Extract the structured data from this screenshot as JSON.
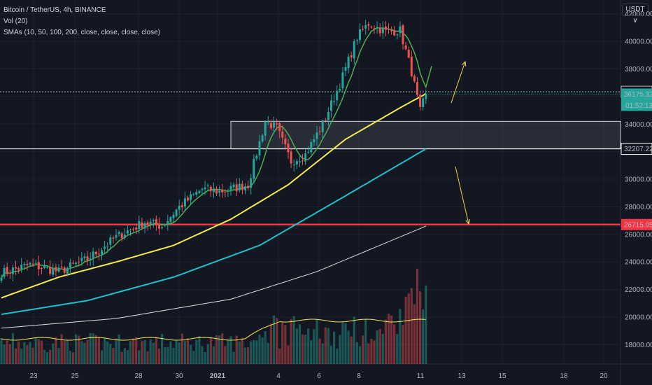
{
  "header": {
    "symbol": "Bitcoin / TetherUS, 4h, BINANCE",
    "volume": "Vol (20)",
    "smas": "SMAs (10, 50, 100, 200, close, close, close, close)",
    "currency": "USDT ∨"
  },
  "chart_data": {
    "type": "candlestick",
    "y_ticks": [
      "42000.00",
      "40000.00",
      "38000.00",
      "36000.00",
      "34000.00",
      "32000.00",
      "30000.00",
      "28000.00",
      "26000.00",
      "24000.00",
      "22000.00",
      "20000.00",
      "18000.00"
    ],
    "x_ticks": [
      "23",
      "25",
      "28",
      "30",
      "2021",
      "4",
      "6",
      "8",
      "11",
      "13",
      "15",
      "18",
      "20"
    ],
    "ylim": [
      16600,
      43000
    ],
    "levels": [
      {
        "value": "36344.46",
        "color": "#b2b5be"
      },
      {
        "value": "32207.22",
        "color": "#ffffff"
      },
      {
        "value": "26715.05",
        "color": "#f23645"
      }
    ],
    "last_price": "36175.33",
    "countdown": "01:52:13",
    "zone": {
      "low": 32207.22,
      "high": 34200
    },
    "colors": {
      "up": "#26a69a",
      "down": "#ef5350",
      "sma10": "#4caf50",
      "sma50": "#f5e94e",
      "sma100": "#1fc0c8",
      "sma200": "#e0e0e0",
      "volume_ma": "#f5e94e"
    },
    "anchors": [
      {
        "t": 0,
        "p": 23200
      },
      {
        "t": 10,
        "p": 23800
      },
      {
        "t": 20,
        "p": 23300
      },
      {
        "t": 30,
        "p": 24200
      },
      {
        "t": 40,
        "p": 25800
      },
      {
        "t": 50,
        "p": 26900
      },
      {
        "t": 56,
        "p": 26600
      },
      {
        "t": 62,
        "p": 28000
      },
      {
        "t": 70,
        "p": 29300
      },
      {
        "t": 76,
        "p": 29100
      },
      {
        "t": 86,
        "p": 29600
      },
      {
        "t": 92,
        "p": 34200
      },
      {
        "t": 96,
        "p": 33700
      },
      {
        "t": 101,
        "p": 31300
      },
      {
        "t": 106,
        "p": 31800
      },
      {
        "t": 112,
        "p": 34000
      },
      {
        "t": 118,
        "p": 36900
      },
      {
        "t": 124,
        "p": 40300
      },
      {
        "t": 128,
        "p": 41300
      },
      {
        "t": 134,
        "p": 40700
      },
      {
        "t": 139,
        "p": 40800
      },
      {
        "t": 143,
        "p": 37800
      },
      {
        "t": 146,
        "p": 34900
      },
      {
        "t": 148,
        "p": 36200
      }
    ],
    "sma50": [
      {
        "t": 0,
        "p": 21400
      },
      {
        "t": 20,
        "p": 22900
      },
      {
        "t": 40,
        "p": 24000
      },
      {
        "t": 60,
        "p": 25200
      },
      {
        "t": 80,
        "p": 27100
      },
      {
        "t": 100,
        "p": 29600
      },
      {
        "t": 120,
        "p": 32900
      },
      {
        "t": 140,
        "p": 35300
      },
      {
        "t": 148,
        "p": 36200
      }
    ],
    "sma100": [
      {
        "t": 0,
        "p": 20200
      },
      {
        "t": 30,
        "p": 21200
      },
      {
        "t": 60,
        "p": 22900
      },
      {
        "t": 90,
        "p": 25200
      },
      {
        "t": 120,
        "p": 28800
      },
      {
        "t": 148,
        "p": 32200
      }
    ],
    "sma200": [
      {
        "t": 0,
        "p": 19200
      },
      {
        "t": 40,
        "p": 19900
      },
      {
        "t": 80,
        "p": 21300
      },
      {
        "t": 110,
        "p": 23300
      },
      {
        "t": 148,
        "p": 26600
      }
    ]
  }
}
